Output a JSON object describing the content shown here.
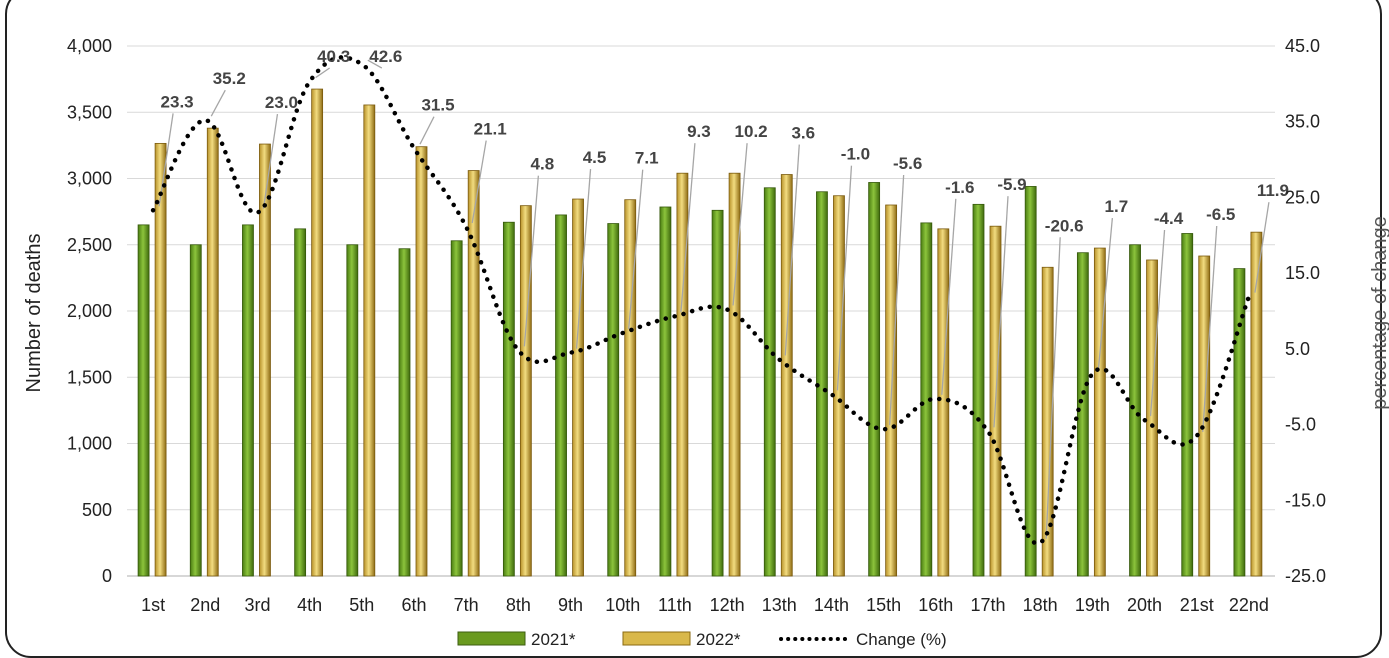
{
  "chart_data": {
    "type": "bar",
    "title": "",
    "categories": [
      "1st",
      "2nd",
      "3rd",
      "4th",
      "5th",
      "6th",
      "7th",
      "8th",
      "9th",
      "10th",
      "11th",
      "12th",
      "13th",
      "14th",
      "15th",
      "16th",
      "17th",
      "18th",
      "19th",
      "20th",
      "21st",
      "22nd"
    ],
    "series": [
      {
        "name": "2021*",
        "type": "bar",
        "axis": "left",
        "color": "#6a9a1f",
        "values": [
          2650,
          2500,
          2650,
          2620,
          2500,
          2470,
          2530,
          2670,
          2725,
          2660,
          2785,
          2760,
          2930,
          2900,
          2970,
          2665,
          2805,
          2940,
          2440,
          2500,
          2585,
          2320
        ]
      },
      {
        "name": "2022*",
        "type": "bar",
        "axis": "left",
        "color": "#d9b84a",
        "values": [
          3265,
          3380,
          3260,
          3675,
          3555,
          3240,
          3060,
          2795,
          2845,
          2840,
          3040,
          3040,
          3030,
          2870,
          2800,
          2620,
          2640,
          2330,
          2475,
          2385,
          2415,
          2595
        ]
      },
      {
        "name": "Change (%)",
        "type": "line",
        "axis": "right",
        "style": "dotted",
        "color": "#000000",
        "values": [
          23.3,
          35.2,
          23.0,
          40.3,
          42.6,
          31.5,
          21.1,
          4.8,
          4.5,
          7.1,
          9.3,
          10.2,
          3.6,
          -1.0,
          -5.6,
          -1.6,
          -5.9,
          -20.6,
          1.7,
          -4.4,
          -6.5,
          11.9
        ],
        "labels": [
          "23.3",
          "35.2",
          "23.0",
          "40.3",
          "42.6",
          "31.5",
          "21.1",
          "4.8",
          "4.5",
          "7.1",
          "9.3",
          "10.2",
          "3.6",
          "-1.0",
          "-5.6",
          "-1.6",
          "-5.9",
          "-20.6",
          "1.7",
          "-4.4",
          "-6.5",
          "11.9"
        ]
      }
    ],
    "ylabel": "Number of deaths",
    "y2label": "percentage of change",
    "ylim": [
      0,
      4000
    ],
    "y2lim": [
      -25,
      45
    ],
    "yticks": [
      "0",
      "500",
      "1,000",
      "1,500",
      "2,000",
      "2,500",
      "3,000",
      "3,500",
      "4,000"
    ],
    "y2ticks": [
      "-25.0",
      "-15.0",
      "-5.0",
      "5.0",
      "15.0",
      "25.0",
      "35.0",
      "45.0"
    ],
    "grid": true,
    "legend": "bottom"
  }
}
